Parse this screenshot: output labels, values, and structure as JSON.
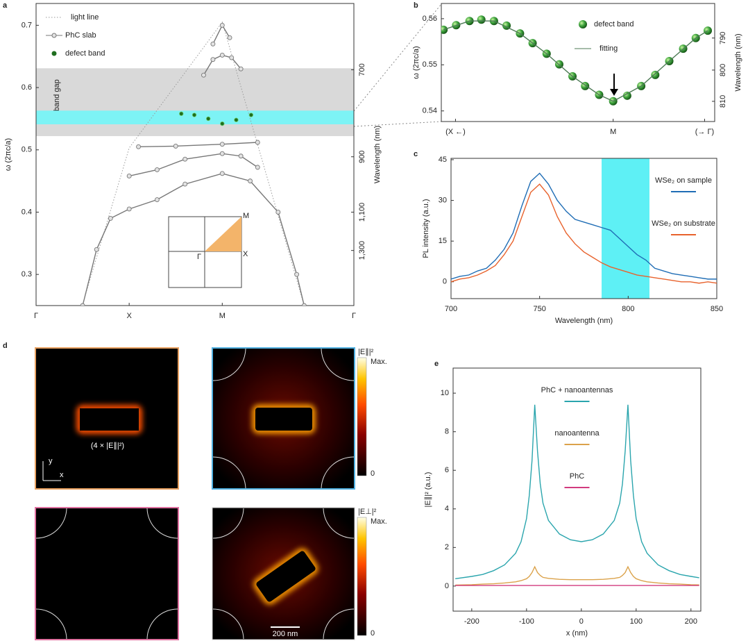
{
  "panel_labels": [
    "a",
    "b",
    "c",
    "d",
    "e"
  ],
  "chart_data": [
    {
      "type": "scatter",
      "ylabel": "ω (2πc/a)",
      "y2label": "Wavelength (nm)",
      "xlim": [
        0,
        3.414
      ],
      "ylim": [
        0.25,
        0.735
      ],
      "xticks": [
        {
          "value": 0,
          "label": "Γ"
        },
        {
          "value": 1,
          "label": "X"
        },
        {
          "value": 2,
          "label": "M"
        },
        {
          "value": 3.414,
          "label": "Γ"
        }
      ],
      "yticks": [
        0.3,
        0.4,
        0.5,
        0.6,
        0.7
      ],
      "y2lim": [
        1760,
        598.6
      ],
      "y2scale": "reciprocal",
      "y2ticks": [
        700,
        900,
        {
          "value": 1100,
          "label": "1,100"
        },
        {
          "value": 1300,
          "label": "1,300"
        }
      ],
      "legend": "upper left",
      "shaded": [
        {
          "range": [
            0.522,
            0.631
          ],
          "color": "#d9d9d9",
          "label": "band gap"
        },
        {
          "range": [
            0.541,
            0.563
          ],
          "color": "#7df3f5"
        }
      ],
      "inset_labels": [
        "M",
        "X",
        "Γ"
      ],
      "series": [
        {
          "name": "light line",
          "color": "#9a9a9a",
          "line": "dotted",
          "x": [
            0.5,
            1,
            2,
            2.876
          ],
          "values": [
            0.252,
            0.503,
            0.705,
            0.252
          ]
        },
        {
          "name": "PhC slab",
          "color": "#777777",
          "line": "solid",
          "marker": "open-circle",
          "x": [
            0.5,
            0.65,
            0.8,
            1,
            1.3,
            1.6,
            2,
            2.3,
            2.6,
            2.8,
            2.88,
            null,
            1,
            1.3,
            1.6,
            2,
            2.2,
            2.38,
            null,
            1.1,
            1.5,
            2,
            2.38,
            null,
            1.8,
            1.9,
            2,
            2.1,
            2.2,
            null,
            1.9,
            2,
            2.08
          ],
          "values": [
            0.25,
            0.34,
            0.39,
            0.405,
            0.42,
            0.445,
            0.462,
            0.45,
            0.4,
            0.3,
            0.25,
            null,
            0.458,
            0.468,
            0.485,
            0.494,
            0.49,
            0.472,
            null,
            0.505,
            0.506,
            0.509,
            0.512,
            null,
            0.62,
            0.645,
            0.652,
            0.648,
            0.63,
            null,
            0.67,
            0.7,
            0.68
          ]
        },
        {
          "name": "defect band",
          "color": "#1f6e1f",
          "marker": "dot",
          "x": [
            1.56,
            1.7,
            1.85,
            2,
            2.15,
            2.31
          ],
          "values": [
            0.558,
            0.556,
            0.55,
            0.542,
            0.548,
            0.556
          ]
        }
      ]
    },
    {
      "type": "scatter",
      "ylabel": "ω (2πc/a)",
      "y2label": "Wavelength (nm)",
      "xlim": [
        -1.09,
        0.644
      ],
      "ylim": [
        0.5377,
        0.5633
      ],
      "xticks": [
        {
          "value": -1,
          "label": "(X ←)"
        },
        {
          "value": 0,
          "label": "M"
        },
        {
          "value": 0.58,
          "label": "(→ Γ)"
        }
      ],
      "yticks": [
        0.54,
        0.55,
        0.56
      ],
      "y2lim": [
        816.6,
        779.5
      ],
      "y2scale": "reciprocal",
      "y2ticks": [
        790,
        800,
        810
      ],
      "legend": "upper right",
      "series": [
        {
          "name": "defect band",
          "color": "#2f8a2f",
          "marker": "ball",
          "x": [
            -1.076,
            -0.996,
            -0.911,
            -0.836,
            -0.756,
            -0.676,
            -0.591,
            -0.511,
            -0.422,
            -0.342,
            -0.258,
            -0.178,
            -0.089,
            0,
            0.089,
            0.178,
            0.267,
            0.356,
            0.444,
            0.524,
            0.6
          ],
          "values": [
            0.5576,
            0.5586,
            0.5595,
            0.5598,
            0.5595,
            0.5585,
            0.5568,
            0.5547,
            0.5524,
            0.5501,
            0.5475,
            0.5454,
            0.5435,
            0.5421,
            0.5433,
            0.5454,
            0.5478,
            0.5508,
            0.5535,
            0.5558,
            0.5574
          ]
        },
        {
          "name": "fitting",
          "color": "#4d7a55",
          "line": "solid",
          "x": [
            -1.076,
            -0.911,
            -0.756,
            -0.591,
            -0.422,
            -0.258,
            -0.089,
            0,
            0.178,
            0.356,
            0.524,
            0.6
          ],
          "values": [
            0.5576,
            0.5595,
            0.5595,
            0.5568,
            0.5524,
            0.5475,
            0.5435,
            0.5421,
            0.5454,
            0.5508,
            0.5558,
            0.5574
          ]
        }
      ]
    },
    {
      "type": "line",
      "xlabel": "Wavelength (nm)",
      "ylabel": "PL intensity (a.u.)",
      "xlim": [
        700,
        850
      ],
      "ylim": [
        -6.2,
        45.5
      ],
      "xticks": [
        700,
        750,
        800,
        850
      ],
      "yticks": [
        0,
        15,
        30,
        45
      ],
      "shaded_x": {
        "range": [
          785,
          812
        ],
        "color": "#5ef0f5"
      },
      "legend": "upper right",
      "x": [
        700,
        705,
        710,
        715,
        720,
        725,
        730,
        735,
        740,
        745,
        750,
        755,
        760,
        765,
        770,
        775,
        780,
        785,
        790,
        795,
        800,
        805,
        810,
        815,
        820,
        825,
        830,
        835,
        840,
        845,
        850
      ],
      "series": [
        {
          "name": "WSe₂ on sample",
          "color": "#1f6db5",
          "values": [
            1,
            2,
            2.5,
            4,
            5,
            8,
            12,
            18,
            28,
            37,
            40,
            36,
            30,
            26,
            23,
            22,
            21,
            20,
            19,
            16,
            13,
            10,
            8,
            5,
            4,
            3,
            2.5,
            2,
            1.5,
            1,
            1
          ]
        },
        {
          "name": "WSe₂ on substrate",
          "color": "#e8622c",
          "values": [
            0,
            1,
            1.5,
            2.5,
            4,
            6,
            10,
            15,
            24,
            33,
            36,
            32,
            24,
            18,
            14,
            11,
            9,
            7,
            5.5,
            4.5,
            3.5,
            2.5,
            2,
            1.5,
            1,
            0.5,
            0,
            0,
            -0.5,
            0,
            -0.5
          ]
        }
      ]
    },
    {
      "type": "line",
      "xlabel": "x (nm)",
      "ylabel": "|E∥|² (a.u.)",
      "xlim": [
        -234,
        218
      ],
      "ylim": [
        -1.3,
        11.3
      ],
      "xticks": [
        -200,
        -100,
        0,
        100,
        200
      ],
      "yticks": [
        0,
        2,
        4,
        6,
        8,
        10
      ],
      "legend": "upper center",
      "x": [
        -230,
        -200,
        -180,
        -160,
        -140,
        -120,
        -110,
        -100,
        -95,
        -90,
        -85,
        -80,
        -75,
        -70,
        -60,
        -40,
        -20,
        0,
        20,
        40,
        60,
        70,
        75,
        80,
        85,
        90,
        95,
        100,
        110,
        120,
        140,
        160,
        180,
        200,
        215
      ],
      "series": [
        {
          "name": "PhC + nanoantennas",
          "color": "#2aa5ad",
          "values": [
            0.38,
            0.5,
            0.6,
            0.8,
            1.1,
            1.7,
            2.3,
            3.5,
            4.7,
            6.5,
            9.4,
            7.0,
            5.3,
            4.3,
            3.4,
            2.7,
            2.4,
            2.3,
            2.4,
            2.7,
            3.4,
            4.3,
            5.3,
            7.0,
            9.4,
            6.5,
            4.7,
            3.5,
            2.3,
            1.7,
            1.1,
            0.8,
            0.6,
            0.5,
            0.43
          ]
        },
        {
          "name": "nanoantenna",
          "color": "#dba24a",
          "values": [
            0.05,
            0.07,
            0.1,
            0.12,
            0.16,
            0.22,
            0.28,
            0.38,
            0.5,
            0.7,
            1.0,
            0.7,
            0.55,
            0.45,
            0.4,
            0.35,
            0.33,
            0.33,
            0.33,
            0.35,
            0.4,
            0.45,
            0.55,
            0.7,
            1.0,
            0.7,
            0.5,
            0.38,
            0.28,
            0.22,
            0.16,
            0.12,
            0.1,
            0.07,
            0.06
          ]
        },
        {
          "name": "PhC",
          "color": "#d23a7e",
          "values": [
            0.03,
            0.03,
            0.03,
            0.03,
            0.03,
            0.03,
            0.03,
            0.03,
            0.03,
            0.03,
            0.03,
            0.03,
            0.03,
            0.03,
            0.03,
            0.03,
            0.03,
            0.03,
            0.03,
            0.03,
            0.03,
            0.03,
            0.03,
            0.03,
            0.03,
            0.03,
            0.03,
            0.03,
            0.03,
            0.03,
            0.03,
            0.03,
            0.03,
            0.03,
            0.03
          ]
        }
      ]
    }
  ],
  "field_maps": {
    "annotation": "(4 × |E∥|²)",
    "axis_y": "y",
    "axis_x": "x",
    "colorbars": [
      {
        "title": "|E∥|²",
        "max": "Max.",
        "min": 0
      },
      {
        "title": "|E⊥|²",
        "max": "Max.",
        "min": 0
      }
    ],
    "scale_bar": "200 nm"
  }
}
